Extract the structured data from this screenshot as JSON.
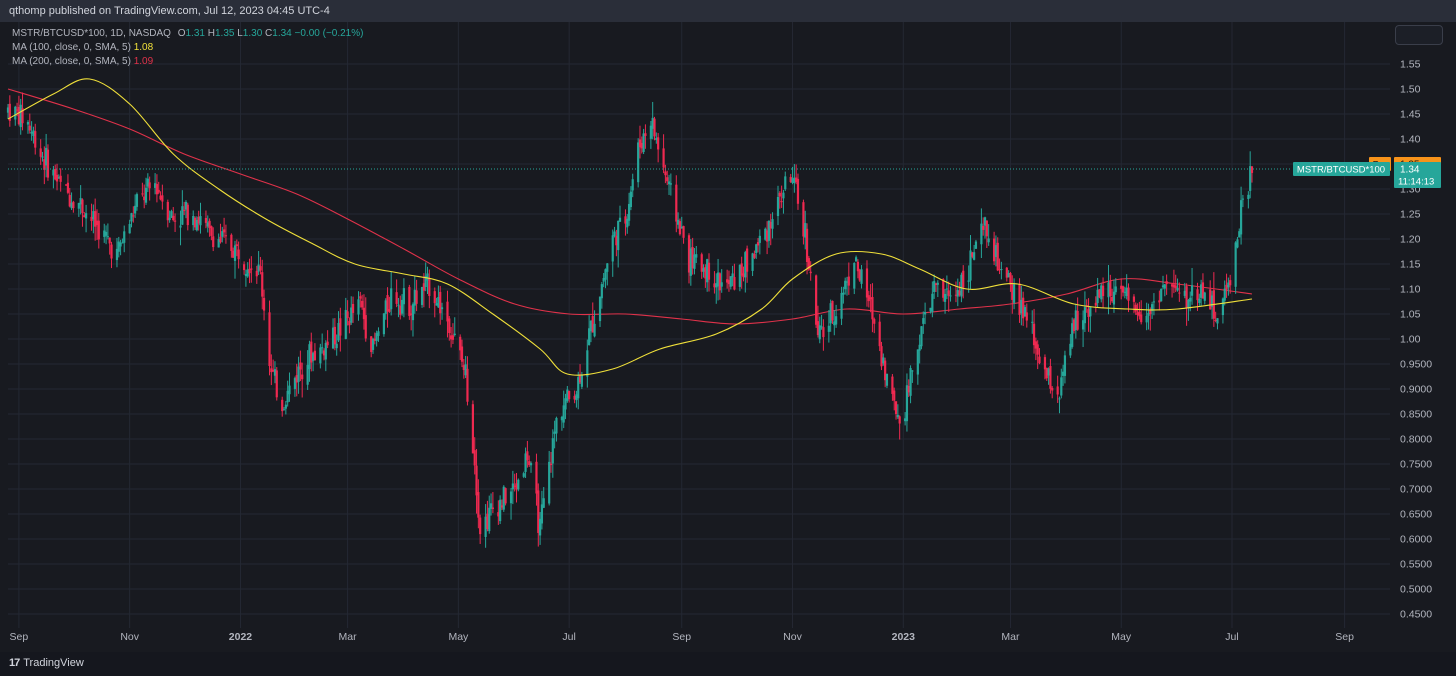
{
  "header": {
    "publisher_line": "qthomp published on TradingView.com, Jul 12, 2023 04:45 UTC-4"
  },
  "legend": {
    "symbol_line": "MSTR/BTCUSD*100, 1D, NASDAQ",
    "o_label": "O",
    "o_value": "1.31",
    "h_label": "H",
    "h_value": "1.35",
    "l_label": "L",
    "l_value": "1.30",
    "c_label": "C",
    "c_value": "1.34",
    "change": "−0.00 (−0.21%)",
    "ma100_label": "MA (100, close, 0, SMA, 5)",
    "ma100_value": "1.08",
    "ma200_label": "MA (200, close, 0, SMA, 5)",
    "ma200_value": "1.09"
  },
  "price_tags": {
    "pre_label": "Pre",
    "pre_value": "1.35",
    "symbol_tag": "MSTR/BTCUSD*100",
    "last_value": "1.34",
    "countdown": "11:14:13"
  },
  "footer": {
    "brand": "TradingView",
    "brand_mark": "17"
  },
  "colors": {
    "up": "#26a69a",
    "down": "#ef2950",
    "ma100": "#f0e03a",
    "ma200": "#e0324a",
    "pre_tag": "#f7931a",
    "grid": "#242833"
  },
  "chart_data": {
    "type": "candlestick",
    "title": "MSTR/BTCUSD*100, 1D, NASDAQ",
    "ylim": [
      0.43,
      1.58
    ],
    "y_ticks": [
      "1.55",
      "1.50",
      "1.45",
      "1.40",
      "1.35",
      "1.30",
      "1.25",
      "1.20",
      "1.15",
      "1.10",
      "1.05",
      "1.00",
      "0.9500",
      "0.9000",
      "0.8500",
      "0.8000",
      "0.7500",
      "0.7000",
      "0.6500",
      "0.6000",
      "0.5500",
      "0.5000",
      "0.4500"
    ],
    "x_ticks": [
      {
        "label": "Sep",
        "date": "2021-09-01",
        "bold": false
      },
      {
        "label": "Nov",
        "date": "2021-11-01",
        "bold": false
      },
      {
        "label": "2022",
        "date": "2022-01-01",
        "bold": true
      },
      {
        "label": "Mar",
        "date": "2022-03-01",
        "bold": false
      },
      {
        "label": "May",
        "date": "2022-05-01",
        "bold": false
      },
      {
        "label": "Jul",
        "date": "2022-07-01",
        "bold": false
      },
      {
        "label": "Sep",
        "date": "2022-09-01",
        "bold": false
      },
      {
        "label": "Nov",
        "date": "2022-11-01",
        "bold": false
      },
      {
        "label": "2023",
        "date": "2023-01-01",
        "bold": true
      },
      {
        "label": "Mar",
        "date": "2023-03-01",
        "bold": false
      },
      {
        "label": "May",
        "date": "2023-05-01",
        "bold": false
      },
      {
        "label": "Jul",
        "date": "2023-07-01",
        "bold": false
      },
      {
        "label": "Sep",
        "date": "2023-09-01",
        "bold": false
      }
    ],
    "x_range": [
      "2021-08-26",
      "2023-09-26"
    ],
    "last_price": 1.34,
    "close_path": [
      [
        "2021-08-26",
        1.46
      ],
      [
        "2021-09-05",
        1.44
      ],
      [
        "2021-09-15",
        1.36
      ],
      [
        "2021-09-25",
        1.3
      ],
      [
        "2021-10-05",
        1.27
      ],
      [
        "2021-10-15",
        1.22
      ],
      [
        "2021-10-25",
        1.17
      ],
      [
        "2021-11-05",
        1.27
      ],
      [
        "2021-11-15",
        1.31
      ],
      [
        "2021-11-25",
        1.24
      ],
      [
        "2021-12-05",
        1.26
      ],
      [
        "2021-12-15",
        1.21
      ],
      [
        "2021-12-25",
        1.19
      ],
      [
        "2022-01-05",
        1.16
      ],
      [
        "2022-01-12",
        1.13
      ],
      [
        "2022-01-18",
        0.93
      ],
      [
        "2022-01-24",
        0.87
      ],
      [
        "2022-02-05",
        0.96
      ],
      [
        "2022-02-15",
        0.98
      ],
      [
        "2022-02-25",
        1.02
      ],
      [
        "2022-03-08",
        1.07
      ],
      [
        "2022-03-15",
        0.98
      ],
      [
        "2022-03-25",
        1.09
      ],
      [
        "2022-04-05",
        1.07
      ],
      [
        "2022-04-15",
        1.11
      ],
      [
        "2022-04-25",
        1.04
      ],
      [
        "2022-05-05",
        0.93
      ],
      [
        "2022-05-10",
        0.76
      ],
      [
        "2022-05-13",
        0.62
      ],
      [
        "2022-05-20",
        0.66
      ],
      [
        "2022-06-01",
        0.7
      ],
      [
        "2022-06-08",
        0.77
      ],
      [
        "2022-06-15",
        0.62
      ],
      [
        "2022-06-25",
        0.86
      ],
      [
        "2022-07-05",
        0.9
      ],
      [
        "2022-07-15",
        1.05
      ],
      [
        "2022-07-25",
        1.2
      ],
      [
        "2022-08-01",
        1.24
      ],
      [
        "2022-08-08",
        1.38
      ],
      [
        "2022-08-15",
        1.44
      ],
      [
        "2022-08-25",
        1.3
      ],
      [
        "2022-09-05",
        1.16
      ],
      [
        "2022-09-15",
        1.14
      ],
      [
        "2022-09-25",
        1.1
      ],
      [
        "2022-10-05",
        1.14
      ],
      [
        "2022-10-15",
        1.2
      ],
      [
        "2022-10-25",
        1.28
      ],
      [
        "2022-10-31",
        1.33
      ],
      [
        "2022-11-08",
        1.21
      ],
      [
        "2022-11-15",
        1.0
      ],
      [
        "2022-11-25",
        1.06
      ],
      [
        "2022-12-05",
        1.16
      ],
      [
        "2022-12-15",
        1.05
      ],
      [
        "2022-12-25",
        0.89
      ],
      [
        "2022-12-31",
        0.83
      ],
      [
        "2023-01-08",
        0.98
      ],
      [
        "2023-01-18",
        1.1
      ],
      [
        "2023-01-28",
        1.08
      ],
      [
        "2023-02-05",
        1.14
      ],
      [
        "2023-02-15",
        1.22
      ],
      [
        "2023-02-25",
        1.12
      ],
      [
        "2023-03-05",
        1.08
      ],
      [
        "2023-03-12",
        1.02
      ],
      [
        "2023-03-20",
        0.93
      ],
      [
        "2023-03-28",
        0.89
      ],
      [
        "2023-04-05",
        1.03
      ],
      [
        "2023-04-15",
        1.08
      ],
      [
        "2023-04-25",
        1.1
      ],
      [
        "2023-05-05",
        1.07
      ],
      [
        "2023-05-15",
        1.05
      ],
      [
        "2023-05-25",
        1.11
      ],
      [
        "2023-06-05",
        1.08
      ],
      [
        "2023-06-15",
        1.1
      ],
      [
        "2023-06-22",
        1.05
      ],
      [
        "2023-06-28",
        1.09
      ],
      [
        "2023-07-02",
        1.17
      ],
      [
        "2023-07-06",
        1.25
      ],
      [
        "2023-07-10",
        1.31
      ],
      [
        "2023-07-12",
        1.34
      ]
    ],
    "series": [
      {
        "name": "MA (100, close, 0, SMA, 5)",
        "color": "#f0e03a",
        "points": [
          [
            "2021-08-26",
            1.44
          ],
          [
            "2021-09-20",
            1.49
          ],
          [
            "2021-10-10",
            1.52
          ],
          [
            "2021-11-01",
            1.47
          ],
          [
            "2021-11-25",
            1.37
          ],
          [
            "2021-12-20",
            1.3
          ],
          [
            "2022-01-15",
            1.24
          ],
          [
            "2022-02-10",
            1.19
          ],
          [
            "2022-03-05",
            1.15
          ],
          [
            "2022-04-01",
            1.13
          ],
          [
            "2022-04-25",
            1.11
          ],
          [
            "2022-05-20",
            1.05
          ],
          [
            "2022-06-15",
            0.98
          ],
          [
            "2022-06-30",
            0.93
          ],
          [
            "2022-07-25",
            0.94
          ],
          [
            "2022-08-20",
            0.98
          ],
          [
            "2022-09-20",
            1.01
          ],
          [
            "2022-10-15",
            1.06
          ],
          [
            "2022-11-01",
            1.12
          ],
          [
            "2022-11-25",
            1.17
          ],
          [
            "2022-12-20",
            1.17
          ],
          [
            "2023-01-10",
            1.14
          ],
          [
            "2023-02-05",
            1.1
          ],
          [
            "2023-03-05",
            1.11
          ],
          [
            "2023-04-05",
            1.07
          ],
          [
            "2023-05-05",
            1.06
          ],
          [
            "2023-06-01",
            1.06
          ],
          [
            "2023-07-12",
            1.08
          ]
        ]
      },
      {
        "name": "MA (200, close, 0, SMA, 5)",
        "color": "#e0324a",
        "points": [
          [
            "2021-08-26",
            1.5
          ],
          [
            "2021-10-01",
            1.46
          ],
          [
            "2021-11-01",
            1.42
          ],
          [
            "2021-12-01",
            1.37
          ],
          [
            "2022-01-01",
            1.33
          ],
          [
            "2022-02-01",
            1.29
          ],
          [
            "2022-03-01",
            1.24
          ],
          [
            "2022-04-01",
            1.18
          ],
          [
            "2022-05-01",
            1.12
          ],
          [
            "2022-06-01",
            1.07
          ],
          [
            "2022-07-01",
            1.05
          ],
          [
            "2022-08-01",
            1.05
          ],
          [
            "2022-09-01",
            1.04
          ],
          [
            "2022-10-01",
            1.03
          ],
          [
            "2022-11-01",
            1.04
          ],
          [
            "2022-12-01",
            1.06
          ],
          [
            "2023-01-01",
            1.05
          ],
          [
            "2023-02-01",
            1.06
          ],
          [
            "2023-03-01",
            1.07
          ],
          [
            "2023-04-01",
            1.09
          ],
          [
            "2023-05-01",
            1.12
          ],
          [
            "2023-06-01",
            1.11
          ],
          [
            "2023-07-12",
            1.09
          ]
        ]
      }
    ]
  }
}
